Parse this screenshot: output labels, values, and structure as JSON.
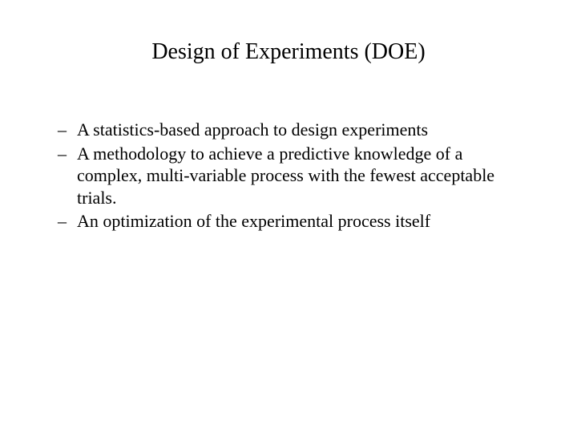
{
  "slide": {
    "title": "Design of Experiments (DOE)",
    "title_fontsize": 28,
    "title_color": "#000000",
    "body_fontsize": 22,
    "body_color": "#000000",
    "background_color": "#ffffff",
    "font_family": "Times New Roman",
    "bullets": [
      {
        "dash": "–",
        "text": "A statistics-based approach to design  experiments"
      },
      {
        "dash": "–",
        "text": "A methodology to achieve a predictive knowledge of a complex, multi-variable process with the fewest acceptable trials."
      },
      {
        "dash": "–",
        "text": "An optimization of the experimental process itself"
      }
    ]
  }
}
